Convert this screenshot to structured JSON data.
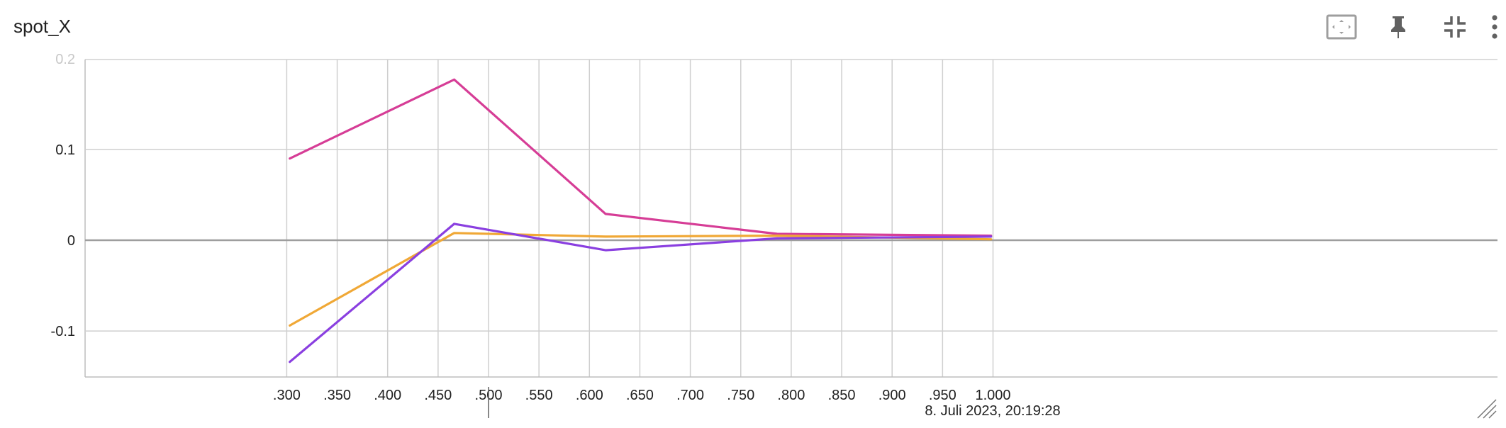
{
  "card": {
    "title": "spot_X",
    "tools": [
      {
        "name": "fit-domain-icon"
      },
      {
        "name": "pin-icon"
      },
      {
        "name": "collapse-icon"
      },
      {
        "name": "more-vert-icon"
      }
    ]
  },
  "chart_data": {
    "type": "line",
    "title": "spot_X",
    "xlabel": "",
    "ylabel": "",
    "xlim": [
      0.3,
      1.0
    ],
    "ylim": [
      -0.15,
      0.2
    ],
    "grid": true,
    "legend": "none",
    "x_ticks": [
      ".300",
      ".350",
      ".400",
      ".450",
      ".500",
      ".550",
      ".600",
      ".650",
      ".700",
      ".750",
      ".800",
      ".850",
      ".900",
      ".950",
      "1.000"
    ],
    "x_tick_values": [
      0.3,
      0.35,
      0.4,
      0.45,
      0.5,
      0.55,
      0.6,
      0.65,
      0.7,
      0.75,
      0.8,
      0.85,
      0.9,
      0.95,
      1.0
    ],
    "y_ticks": [
      "0.2",
      "0.1",
      "0",
      "-0.1"
    ],
    "y_tick_values": [
      0.2,
      0.1,
      0,
      -0.1
    ],
    "timestamp_label": "8. Juli 2023, 20:19:28",
    "timestamp_x": 0.5,
    "series": [
      {
        "color": "#d63d96",
        "x": [
          0.303,
          0.466,
          0.616,
          0.786,
          0.998
        ],
        "y": [
          0.09,
          0.177,
          0.029,
          0.007,
          0.005
        ]
      },
      {
        "color": "#f0a836",
        "x": [
          0.303,
          0.466,
          0.616,
          0.786,
          0.998
        ],
        "y": [
          -0.094,
          0.008,
          0.004,
          0.005,
          0.001
        ]
      },
      {
        "color": "#8a3fe0",
        "x": [
          0.303,
          0.466,
          0.616,
          0.786,
          0.998
        ],
        "y": [
          -0.134,
          0.018,
          -0.011,
          0.002,
          0.004
        ]
      }
    ]
  }
}
